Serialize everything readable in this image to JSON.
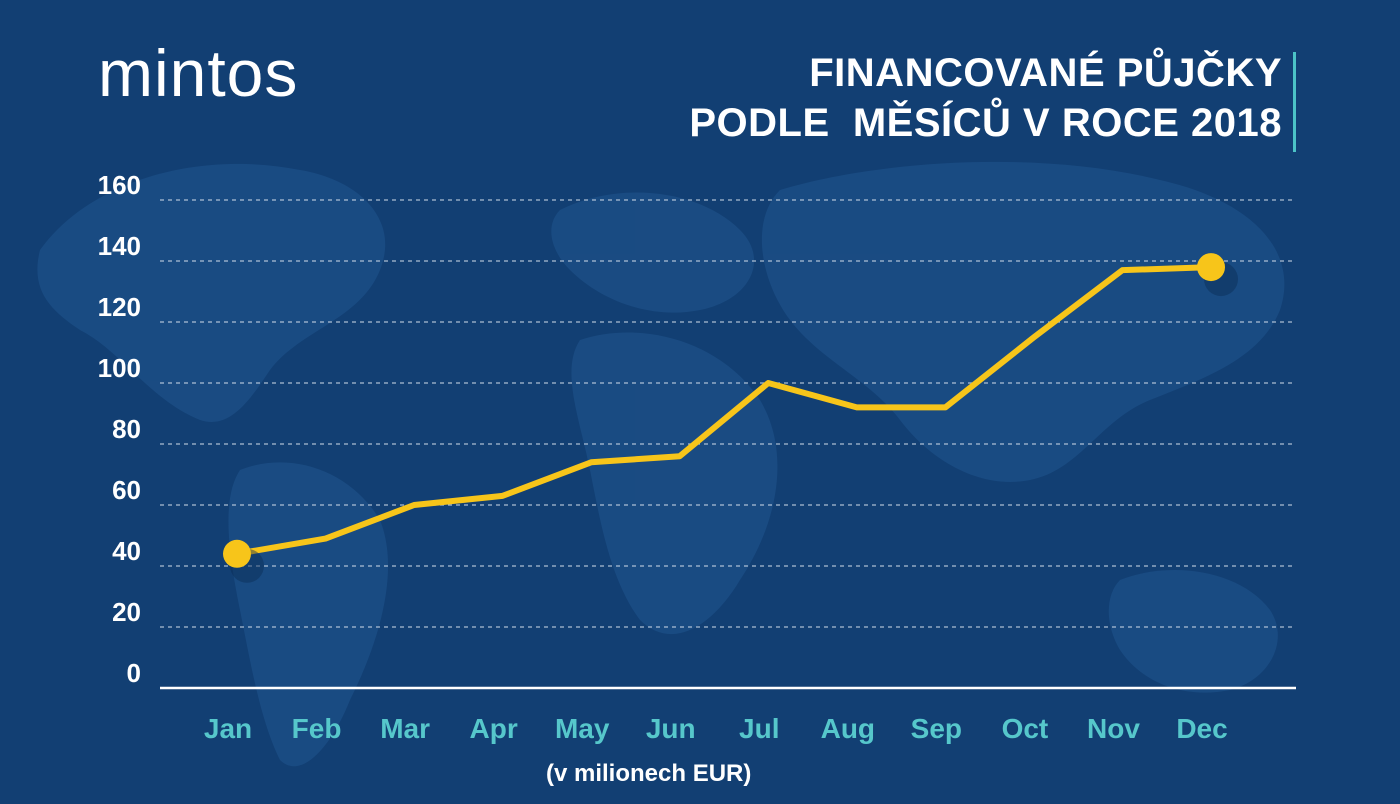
{
  "brand": {
    "logo_text": "mintos"
  },
  "title_lines": [
    "FINANCOVANÉ PŮJČKY",
    "PODLE  MĚSÍCŮ V ROCE 2018"
  ],
  "unit_note": "(v milionech EUR)",
  "colors": {
    "background": "#123f73",
    "map": "#1b4d84",
    "line": "#f7c51a",
    "grid": "#c8d4e3",
    "axis_text": "#ffffff",
    "month_text": "#56c7cb",
    "accent_bar": "#4cc3c7"
  },
  "chart_data": {
    "type": "line",
    "title": "FINANCOVANÉ PŮJČKY PODLE  MĚSÍCŮ V ROCE 2018",
    "xlabel": "",
    "ylabel": "(v milionech EUR)",
    "categories": [
      "Jan",
      "Feb",
      "Mar",
      "Apr",
      "May",
      "Jun",
      "Jul",
      "Aug",
      "Sep",
      "Oct",
      "Nov",
      "Dec"
    ],
    "values": [
      44,
      49,
      60,
      63,
      74,
      76,
      100,
      92,
      92,
      115,
      137,
      138
    ],
    "ylim": [
      0,
      160
    ],
    "yticks": [
      "0",
      "20",
      "40",
      "60",
      "80",
      "100",
      "120",
      "140",
      "160"
    ],
    "grid": true,
    "markers_on": [
      "Jan",
      "Dec"
    ]
  }
}
